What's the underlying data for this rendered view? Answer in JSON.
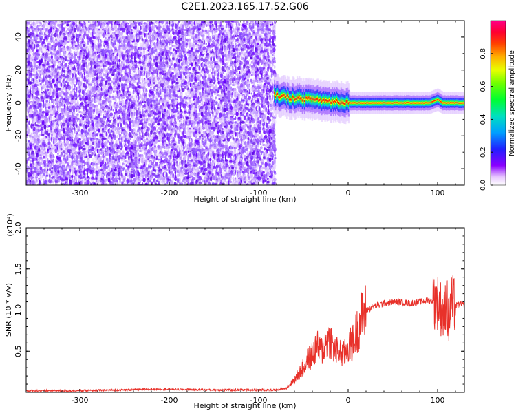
{
  "title": "C2E1.2023.165.17.52.G06",
  "colors": {
    "snr_line": "#e8312a",
    "spectrogram_noise": "#6a00ff",
    "background": "#ffffff"
  },
  "chart_data": [
    {
      "type": "heatmap",
      "title": "C2E1.2023.165.17.52.G06",
      "xlabel": "Height of straight line (km)",
      "ylabel": "Frequency (Hz)",
      "xlim": [
        -360,
        130
      ],
      "ylim": [
        -50,
        50
      ],
      "xticks": [
        -300,
        -200,
        -100,
        0,
        100
      ],
      "xtick_labels": [
        "-300",
        "-200",
        "-100",
        "0",
        "100"
      ],
      "yticks": [
        -40,
        -20,
        0,
        20,
        40
      ],
      "ytick_labels": [
        "-40",
        "-20",
        "0",
        "20",
        "40"
      ],
      "noise_region_x": [
        -360,
        -83
      ],
      "signal_start_x": -83,
      "signal_frequency_hz": [
        [
          -83,
          5
        ],
        [
          -75,
          4
        ],
        [
          -65,
          3
        ],
        [
          -55,
          3
        ],
        [
          -45,
          2
        ],
        [
          -35,
          2
        ],
        [
          -25,
          1
        ],
        [
          -15,
          1
        ],
        [
          -5,
          0.5
        ],
        [
          5,
          0
        ],
        [
          30,
          0
        ],
        [
          60,
          0
        ],
        [
          90,
          0
        ],
        [
          100,
          2
        ],
        [
          105,
          0
        ],
        [
          130,
          0
        ]
      ],
      "colorbar": {
        "label": "Normalized spectral amplitude",
        "range": [
          0,
          1
        ],
        "ticks": [
          0.0,
          0.2,
          0.4,
          0.6,
          0.8
        ],
        "tick_labels": [
          "0.0",
          "0.2",
          "0.4",
          "0.6",
          "0.8"
        ],
        "colormap": "rainbow (white-violet-blue-cyan-green-yellow-orange-red-magenta)"
      }
    },
    {
      "type": "line",
      "xlabel": "Height of straight line (km)",
      "ylabel": "SNR (10 * v/v)",
      "y_multiplier_label": "(x10⁴)",
      "xlim": [
        -360,
        130
      ],
      "ylim": [
        0,
        2.0
      ],
      "xticks": [
        -300,
        -200,
        -100,
        0,
        100
      ],
      "xtick_labels": [
        "-300",
        "-200",
        "-100",
        "0",
        "100"
      ],
      "yticks": [
        0.5,
        1.0,
        1.5,
        2.0
      ],
      "ytick_labels": [
        "0.5",
        "1.0",
        "1.5",
        "2.0"
      ],
      "series": [
        {
          "x": [
            -360,
            -300,
            -250,
            -210,
            -150,
            -100,
            -80,
            -70,
            -60,
            -50,
            -45,
            -40,
            -35,
            -30,
            -25,
            -20,
            -15,
            -10,
            -5,
            0,
            5,
            10,
            15,
            20,
            30,
            40,
            50,
            60,
            70,
            80,
            90,
            100,
            105,
            108,
            110,
            112,
            115,
            120,
            125,
            130
          ],
          "y": [
            0.02,
            0.02,
            0.03,
            0.04,
            0.03,
            0.03,
            0.03,
            0.05,
            0.15,
            0.3,
            0.4,
            0.45,
            0.55,
            0.5,
            0.6,
            0.65,
            0.5,
            0.5,
            0.45,
            0.55,
            0.6,
            0.75,
            0.9,
            1.0,
            1.05,
            1.08,
            1.1,
            1.1,
            1.08,
            1.1,
            1.12,
            1.1,
            1.0,
            0.9,
            1.3,
            0.8,
            1.1,
            1.05,
            1.07,
            1.06
          ]
        }
      ]
    }
  ]
}
